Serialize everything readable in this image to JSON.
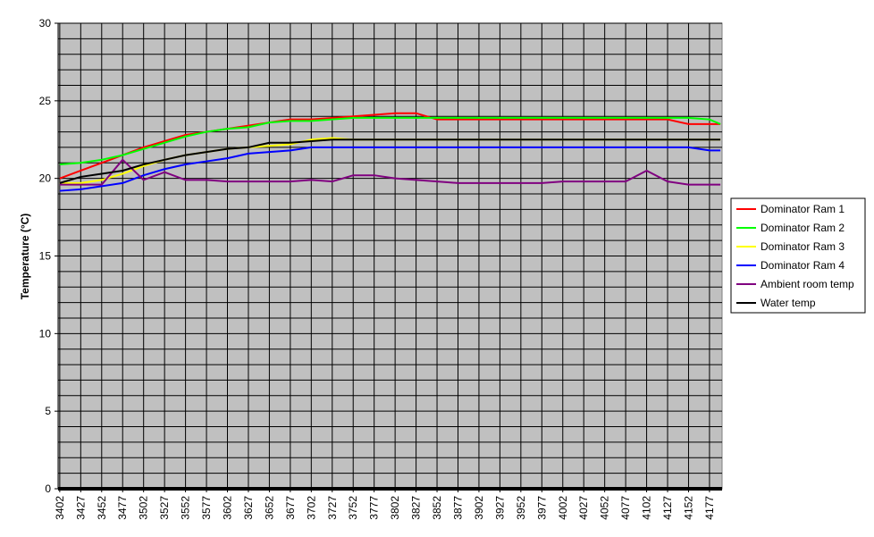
{
  "chart_data": {
    "type": "line",
    "y_label": "Temperature (°C)",
    "x": [
      3402,
      3427,
      3452,
      3477,
      3502,
      3527,
      3552,
      3577,
      3602,
      3627,
      3652,
      3677,
      3702,
      3727,
      3752,
      3777,
      3802,
      3827,
      3852,
      3877,
      3902,
      3927,
      3952,
      3977,
      4002,
      4027,
      4052,
      4077,
      4102,
      4127,
      4152,
      4177,
      4190
    ],
    "xlim": [
      3400,
      4192
    ],
    "xticks": [
      3402,
      3427,
      3452,
      3477,
      3502,
      3527,
      3552,
      3577,
      3602,
      3627,
      3652,
      3677,
      3702,
      3727,
      3752,
      3777,
      3802,
      3827,
      3852,
      3877,
      3902,
      3927,
      3952,
      3977,
      4002,
      4027,
      4052,
      4077,
      4102,
      4127,
      4152,
      4177
    ],
    "ylim": [
      0,
      30
    ],
    "yticks": [
      0,
      5,
      10,
      15,
      20,
      25,
      30
    ],
    "yminorticks": [
      1,
      2,
      3,
      4,
      6,
      7,
      8,
      9,
      11,
      12,
      13,
      14,
      16,
      17,
      18,
      19,
      21,
      22,
      23,
      24,
      26,
      27,
      28,
      29
    ],
    "grid": true,
    "legend": "right",
    "series": [
      {
        "name": "Dominator Ram 1",
        "color": "#ff0000",
        "values": [
          20.0,
          20.5,
          21.0,
          21.5,
          22.0,
          22.4,
          22.8,
          23.0,
          23.2,
          23.4,
          23.6,
          23.8,
          23.8,
          23.9,
          24.0,
          24.1,
          24.2,
          24.2,
          23.8,
          23.8,
          23.8,
          23.8,
          23.8,
          23.8,
          23.8,
          23.8,
          23.8,
          23.8,
          23.8,
          23.8,
          23.5,
          23.5,
          23.5
        ]
      },
      {
        "name": "Dominator Ram 2",
        "color": "#00ff00",
        "values": [
          20.9,
          21.0,
          21.2,
          21.5,
          21.9,
          22.3,
          22.7,
          23.0,
          23.2,
          23.3,
          23.6,
          23.7,
          23.7,
          23.8,
          23.9,
          23.9,
          23.9,
          23.9,
          23.9,
          23.9,
          23.9,
          23.9,
          23.9,
          23.9,
          23.9,
          23.9,
          23.9,
          23.9,
          23.9,
          23.9,
          23.9,
          23.8,
          23.5
        ]
      },
      {
        "name": "Dominator Ram 3",
        "color": "#ffff00",
        "values": [
          19.7,
          19.7,
          19.9,
          20.3,
          20.8,
          21.2,
          21.5,
          21.7,
          21.9,
          22.0,
          22.1,
          22.2,
          22.5,
          22.6,
          22.5,
          22.5,
          22.5,
          22.5,
          22.5,
          22.5,
          22.5,
          22.5,
          22.5,
          22.5,
          22.5,
          22.5,
          22.5,
          22.5,
          22.5,
          22.5,
          22.5,
          22.5,
          22.5
        ]
      },
      {
        "name": "Dominator Ram 4",
        "color": "#0000ff",
        "values": [
          19.2,
          19.3,
          19.5,
          19.7,
          20.2,
          20.6,
          20.9,
          21.1,
          21.3,
          21.6,
          21.7,
          21.8,
          22.0,
          22.0,
          22.0,
          22.0,
          22.0,
          22.0,
          22.0,
          22.0,
          22.0,
          22.0,
          22.0,
          22.0,
          22.0,
          22.0,
          22.0,
          22.0,
          22.0,
          22.0,
          22.0,
          21.8,
          21.8
        ]
      },
      {
        "name": "Ambient room temp",
        "color": "#800080",
        "values": [
          19.6,
          19.6,
          19.6,
          21.2,
          19.9,
          20.4,
          19.9,
          19.9,
          19.8,
          19.8,
          19.8,
          19.8,
          19.9,
          19.8,
          20.2,
          20.2,
          20.0,
          19.9,
          19.8,
          19.7,
          19.7,
          19.7,
          19.7,
          19.7,
          19.8,
          19.8,
          19.8,
          19.8,
          20.5,
          19.8,
          19.6,
          19.6,
          19.6
        ]
      },
      {
        "name": "Water temp",
        "color": "#000000",
        "values": [
          19.7,
          20.1,
          20.3,
          20.5,
          20.9,
          21.2,
          21.5,
          21.7,
          21.9,
          22.0,
          22.3,
          22.3,
          22.4,
          22.5,
          22.5,
          22.5,
          22.5,
          22.5,
          22.5,
          22.5,
          22.5,
          22.5,
          22.5,
          22.5,
          22.5,
          22.5,
          22.5,
          22.5,
          22.5,
          22.5,
          22.5,
          22.5,
          22.5
        ]
      }
    ]
  }
}
